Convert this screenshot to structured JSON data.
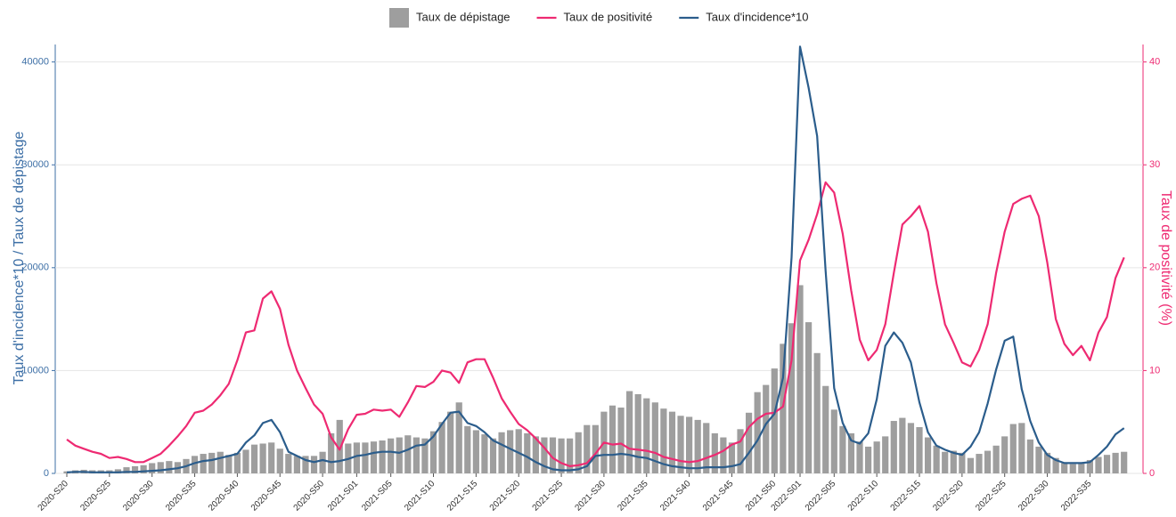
{
  "chart_data": {
    "type": "bar_line_dual",
    "series": [
      {
        "name": "Taux de dépistage",
        "type": "bar",
        "color": "#9e9e9e",
        "values": [
          200,
          300,
          350,
          300,
          300,
          300,
          400,
          600,
          700,
          800,
          1000,
          1100,
          1200,
          1100,
          1400,
          1700,
          1900,
          2000,
          2100,
          1800,
          2000,
          2300,
          2800,
          2900,
          3000,
          2400,
          1900,
          1700,
          1700,
          1700,
          2100,
          3900,
          5200,
          2900,
          3000,
          3000,
          3100,
          3200,
          3400,
          3500,
          3700,
          3500,
          3400,
          4100,
          5000,
          6000,
          6900,
          4600,
          4200,
          3800,
          3400,
          4000,
          4200,
          4300,
          3900,
          3600,
          3500,
          3500,
          3400,
          3400,
          4000,
          4700,
          4700,
          6000,
          6600,
          6400,
          8000,
          7700,
          7300,
          6900,
          6300,
          6000,
          5600,
          5500,
          5200,
          4900,
          3900,
          3500,
          3000,
          4300,
          5900,
          7900,
          8600,
          10200,
          12600,
          14600,
          18300,
          14700,
          11700,
          8500,
          6200,
          4600,
          3900,
          3100,
          2600,
          3100,
          3600,
          5100,
          5400,
          4900,
          4500,
          3500,
          2700,
          2100,
          2200,
          2000,
          1500,
          1900,
          2200,
          2700,
          3600,
          4800,
          4900,
          3300,
          2600,
          2000,
          1500,
          1000,
          900,
          1000,
          1300,
          1600,
          1800,
          2000,
          2100
        ]
      },
      {
        "name": "Taux de positivité",
        "type": "line",
        "axis": "y2",
        "color": "#ee2a72",
        "values": [
          3.3,
          2.7,
          2.4,
          2.1,
          1.9,
          1.5,
          1.6,
          1.4,
          1.1,
          1.1,
          1.5,
          1.9,
          2.7,
          3.6,
          4.6,
          5.9,
          6.1,
          6.7,
          7.6,
          8.7,
          11.0,
          13.7,
          13.9,
          17.0,
          17.7,
          16.0,
          12.5,
          10.0,
          8.3,
          6.7,
          5.8,
          3.5,
          2.3,
          4.3,
          5.7,
          5.8,
          6.2,
          6.1,
          6.2,
          5.5,
          6.9,
          8.5,
          8.4,
          8.9,
          10.0,
          9.8,
          8.8,
          10.8,
          11.1,
          11.1,
          9.3,
          7.3,
          6.0,
          4.8,
          4.2,
          3.4,
          2.5,
          1.5,
          1.0,
          0.7,
          0.8,
          1.0,
          1.9,
          3.0,
          2.8,
          2.9,
          2.4,
          2.3,
          2.2,
          2.0,
          1.6,
          1.4,
          1.2,
          1.1,
          1.2,
          1.5,
          1.8,
          2.2,
          2.8,
          3.1,
          4.5,
          5.3,
          5.8,
          5.9,
          6.5,
          11.0,
          20.7,
          22.7,
          25.2,
          28.3,
          27.3,
          23.3,
          17.8,
          13.0,
          11.0,
          12.0,
          14.5,
          19.5,
          24.2,
          25.0,
          26.0,
          23.5,
          18.5,
          14.5,
          12.7,
          10.8,
          10.4,
          12.0,
          14.5,
          19.5,
          23.5,
          26.2,
          26.7,
          27.0,
          25.0,
          20.5,
          15.0,
          12.6,
          11.5,
          12.4,
          11.0,
          13.7,
          15.2,
          19.0,
          21.0
        ]
      },
      {
        "name": "Taux d'incidence*10",
        "type": "line",
        "color": "#2b5d8c",
        "values": [
          100,
          150,
          150,
          100,
          100,
          100,
          100,
          150,
          150,
          200,
          250,
          300,
          400,
          500,
          700,
          1000,
          1200,
          1300,
          1500,
          1700,
          1900,
          3000,
          3700,
          4900,
          5200,
          4000,
          2100,
          1700,
          1300,
          1100,
          1300,
          1100,
          1200,
          1400,
          1700,
          1800,
          2000,
          2100,
          2100,
          2000,
          2300,
          2700,
          2800,
          3600,
          4800,
          5900,
          6000,
          4900,
          4600,
          4000,
          3200,
          2800,
          2400,
          2000,
          1600,
          1100,
          700,
          400,
          300,
          300,
          400,
          700,
          1700,
          1800,
          1800,
          1900,
          1800,
          1600,
          1500,
          1200,
          900,
          700,
          600,
          500,
          500,
          600,
          600,
          600,
          700,
          900,
          2000,
          3200,
          4800,
          5800,
          9300,
          21000,
          41500,
          37500,
          32800,
          19700,
          8300,
          4900,
          3200,
          2900,
          3900,
          7200,
          12400,
          13700,
          12700,
          10800,
          6900,
          4000,
          2700,
          2300,
          2000,
          1800,
          2600,
          4000,
          6800,
          10100,
          12900,
          13300,
          8200,
          5100,
          3000,
          1800,
          1300,
          1000,
          1000,
          1000,
          1100,
          1800,
          2600,
          3800,
          4400
        ]
      }
    ],
    "categories": [
      "2020-S20",
      null,
      null,
      null,
      null,
      "2020-S25",
      null,
      null,
      null,
      null,
      "2020-S30",
      null,
      null,
      null,
      null,
      "2020-S35",
      null,
      null,
      null,
      null,
      "2020-S40",
      null,
      null,
      null,
      null,
      "2020-S45",
      null,
      null,
      null,
      null,
      "2020-S50",
      null,
      null,
      null,
      "2021-S01",
      null,
      null,
      null,
      "2021-S05",
      null,
      null,
      null,
      null,
      "2021-S10",
      null,
      null,
      null,
      null,
      "2021-S15",
      null,
      null,
      null,
      null,
      "2021-S20",
      null,
      null,
      null,
      null,
      "2021-S25",
      null,
      null,
      null,
      null,
      "2021-S30",
      null,
      null,
      null,
      null,
      "2021-S35",
      null,
      null,
      null,
      null,
      "2021-S40",
      null,
      null,
      null,
      null,
      "2021-S45",
      null,
      null,
      null,
      null,
      "2021-S50",
      null,
      null,
      "2022-S01",
      null,
      null,
      null,
      "2022-S05",
      null,
      null,
      null,
      null,
      "2022-S10",
      null,
      null,
      null,
      null,
      "2022-S15",
      null,
      null,
      null,
      null,
      "2022-S20",
      null,
      null,
      null,
      null,
      "2022-S25",
      null,
      null,
      null,
      null,
      "2022-S30",
      null,
      null,
      null,
      null,
      "2022-S35",
      null,
      null,
      null,
      null
    ],
    "ylabel": "Taux d'incidence*10 / Taux de dépistage",
    "y2label": "Taux de positivité (%)",
    "ylim": [
      0,
      41700
    ],
    "yticks": [
      0,
      10000,
      20000,
      30000,
      40000
    ],
    "y2lim": [
      0,
      41.7
    ],
    "y2ticks": [
      0,
      10,
      20,
      30,
      40
    ],
    "grid": true,
    "legend": "top"
  }
}
